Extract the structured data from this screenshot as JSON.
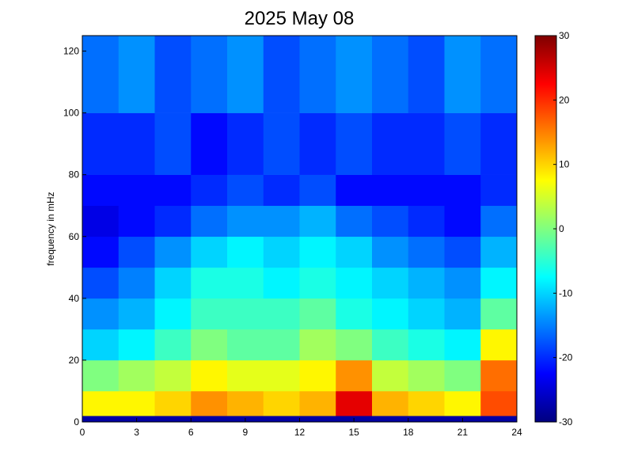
{
  "chart_data": {
    "type": "heatmap",
    "title": "2025 May 08",
    "y_label": "frequency in mHz",
    "x_bins": [
      0,
      2,
      4,
      6,
      8,
      10,
      12,
      14,
      16,
      18,
      20,
      22,
      24
    ],
    "y_bins": [
      0,
      2,
      10,
      20,
      30,
      40,
      50,
      60,
      70,
      80,
      100,
      125
    ],
    "values": [
      [
        -28,
        -28,
        -28,
        -28,
        -28,
        -28,
        -28,
        -28,
        -28,
        -28,
        -28,
        -28
      ],
      [
        8,
        8,
        10,
        14,
        12,
        10,
        12,
        24,
        12,
        10,
        8,
        18
      ],
      [
        0,
        2,
        4,
        8,
        6,
        6,
        8,
        14,
        4,
        2,
        0,
        16
      ],
      [
        -10,
        -8,
        -4,
        0,
        -2,
        -2,
        2,
        0,
        -4,
        -6,
        -8,
        8
      ],
      [
        -14,
        -12,
        -8,
        -4,
        -4,
        -4,
        -2,
        -6,
        -8,
        -10,
        -12,
        -2
      ],
      [
        -18,
        -15,
        -10,
        -6,
        -6,
        -8,
        -6,
        -8,
        -10,
        -12,
        -14,
        -8
      ],
      [
        -22,
        -18,
        -14,
        -10,
        -8,
        -10,
        -8,
        -10,
        -14,
        -16,
        -18,
        -12
      ],
      [
        -24,
        -22,
        -20,
        -16,
        -14,
        -14,
        -12,
        -16,
        -18,
        -20,
        -22,
        -16
      ],
      [
        -22,
        -22,
        -22,
        -20,
        -18,
        -20,
        -18,
        -22,
        -22,
        -22,
        -22,
        -20
      ],
      [
        -20,
        -20,
        -18,
        -22,
        -20,
        -18,
        -20,
        -18,
        -20,
        -20,
        -18,
        -20
      ],
      [
        -16,
        -14,
        -18,
        -16,
        -14,
        -18,
        -16,
        -14,
        -16,
        -18,
        -14,
        -16
      ]
    ],
    "xlim": [
      0,
      24
    ],
    "xticks": [
      0,
      3,
      6,
      9,
      12,
      15,
      18,
      21,
      24
    ],
    "ylim": [
      0,
      125
    ],
    "yticks": [
      0,
      20,
      40,
      60,
      80,
      100,
      120
    ],
    "clim": [
      -30,
      30
    ],
    "cticks": [
      -30,
      -20,
      -10,
      0,
      10,
      20,
      30
    ],
    "colormap": "jet"
  }
}
